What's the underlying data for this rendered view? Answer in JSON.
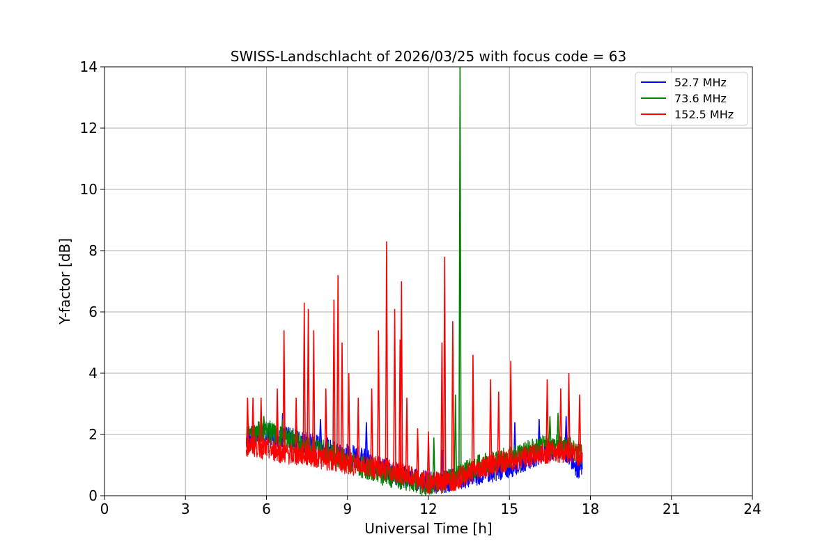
{
  "chart_data": {
    "type": "line",
    "title": "SWISS-Landschlacht of 2026/03/25 with focus code = 63",
    "xlabel": "Universal Time [h]",
    "ylabel": "Y-factor [dB]",
    "xlim": [
      0,
      24
    ],
    "ylim": [
      0,
      14
    ],
    "xticks": [
      0,
      3,
      6,
      9,
      12,
      15,
      18,
      21,
      24
    ],
    "yticks": [
      0,
      2,
      4,
      6,
      8,
      10,
      12,
      14
    ],
    "grid": true,
    "legend_position": "top-right",
    "series": [
      {
        "name": " 52.7 MHz",
        "color": "#0000ff",
        "x": [
          5.25,
          5.5,
          6.0,
          6.5,
          7.0,
          7.5,
          8.0,
          8.5,
          9.0,
          9.5,
          10.0,
          10.5,
          11.0,
          11.5,
          12.0,
          12.5,
          13.0,
          13.5,
          14.0,
          14.5,
          15.0,
          15.5,
          16.0,
          16.5,
          17.0,
          17.3,
          17.5,
          17.7
        ],
        "y": [
          1.8,
          1.9,
          2.0,
          1.9,
          1.8,
          1.7,
          1.6,
          1.4,
          1.3,
          1.2,
          1.0,
          0.8,
          0.6,
          0.5,
          0.4,
          0.4,
          0.5,
          0.6,
          0.7,
          0.8,
          0.9,
          1.1,
          1.3,
          1.4,
          1.5,
          1.2,
          0.9,
          0.9
        ],
        "peaks": [
          [
            6.6,
            2.7
          ],
          [
            7.1,
            2.6
          ],
          [
            8.0,
            2.5
          ],
          [
            9.7,
            2.4
          ],
          [
            12.5,
            1.5
          ],
          [
            15.2,
            2.4
          ],
          [
            16.1,
            2.5
          ],
          [
            17.1,
            2.6
          ]
        ]
      },
      {
        "name": " 73.6 MHz",
        "color": "#008000",
        "x": [
          5.25,
          5.5,
          6.0,
          6.5,
          7.0,
          7.5,
          8.0,
          8.5,
          9.0,
          9.5,
          10.0,
          10.5,
          11.0,
          11.5,
          12.0,
          12.5,
          13.0,
          13.5,
          14.0,
          14.5,
          15.0,
          15.5,
          16.0,
          16.5,
          17.0,
          17.3,
          17.5,
          17.7
        ],
        "y": [
          1.9,
          2.0,
          2.1,
          1.9,
          1.8,
          1.6,
          1.5,
          1.3,
          1.1,
          0.9,
          0.8,
          0.6,
          0.5,
          0.4,
          0.3,
          0.4,
          0.6,
          0.8,
          1.0,
          1.1,
          1.2,
          1.4,
          1.5,
          1.6,
          1.6,
          1.5,
          1.4,
          1.3
        ],
        "peaks": [
          [
            5.9,
            2.6
          ],
          [
            6.6,
            2.5
          ],
          [
            7.1,
            2.4
          ],
          [
            12.2,
            1.9
          ],
          [
            13.0,
            3.3
          ],
          [
            13.17,
            14.0
          ],
          [
            16.5,
            2.6
          ],
          [
            16.8,
            2.7
          ]
        ]
      },
      {
        "name": " 152.5 MHz",
        "color": "#ff0000",
        "x": [
          5.25,
          5.5,
          6.0,
          6.5,
          7.0,
          7.5,
          8.0,
          8.5,
          9.0,
          9.5,
          10.0,
          10.5,
          11.0,
          11.5,
          12.0,
          12.5,
          13.0,
          13.5,
          14.0,
          14.5,
          15.0,
          15.5,
          16.0,
          16.5,
          17.0,
          17.3,
          17.5,
          17.7
        ],
        "y": [
          1.6,
          1.6,
          1.5,
          1.4,
          1.3,
          1.3,
          1.2,
          1.1,
          1.0,
          1.0,
          0.9,
          0.8,
          0.7,
          0.5,
          0.4,
          0.4,
          0.5,
          0.7,
          0.9,
          1.0,
          1.1,
          1.2,
          1.3,
          1.4,
          1.4,
          1.4,
          1.3,
          1.3
        ],
        "peaks": [
          [
            5.3,
            3.2
          ],
          [
            5.5,
            3.2
          ],
          [
            5.8,
            3.2
          ],
          [
            6.4,
            3.5
          ],
          [
            6.65,
            5.4
          ],
          [
            7.1,
            3.2
          ],
          [
            7.4,
            6.3
          ],
          [
            7.55,
            6.1
          ],
          [
            7.75,
            5.4
          ],
          [
            8.2,
            3.5
          ],
          [
            8.5,
            6.4
          ],
          [
            8.65,
            7.2
          ],
          [
            8.8,
            5.0
          ],
          [
            9.05,
            4.0
          ],
          [
            9.4,
            3.2
          ],
          [
            9.9,
            3.5
          ],
          [
            10.15,
            5.4
          ],
          [
            10.45,
            8.3
          ],
          [
            10.75,
            6.1
          ],
          [
            10.95,
            5.1
          ],
          [
            11.0,
            7.0
          ],
          [
            11.2,
            3.2
          ],
          [
            11.6,
            2.2
          ],
          [
            12.0,
            2.1
          ],
          [
            12.5,
            5.0
          ],
          [
            12.6,
            7.8
          ],
          [
            12.9,
            5.7
          ],
          [
            13.65,
            4.6
          ],
          [
            14.3,
            3.8
          ],
          [
            14.6,
            3.4
          ],
          [
            15.05,
            4.4
          ],
          [
            16.4,
            3.8
          ],
          [
            16.9,
            3.5
          ],
          [
            17.2,
            4.0
          ],
          [
            17.6,
            3.3
          ]
        ]
      }
    ]
  }
}
